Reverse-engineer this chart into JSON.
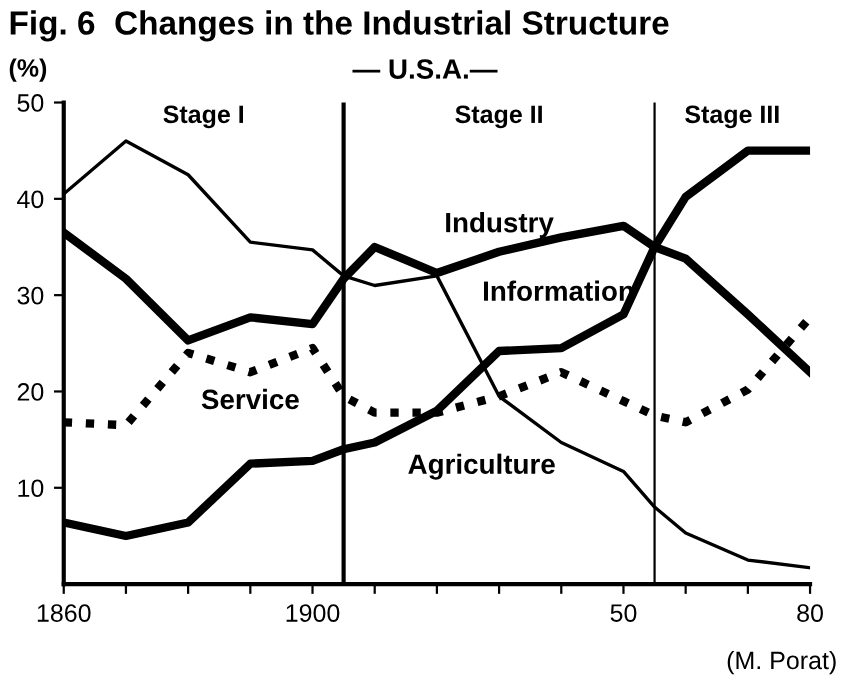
{
  "chart_data": {
    "type": "line",
    "title": "Fig. 6  Changes in the Industrial Structure",
    "subtitle": "— U.S.A.—",
    "ylabel": "(%)",
    "x": [
      1860,
      1870,
      1880,
      1890,
      1900,
      1905,
      1910,
      1920,
      1930,
      1940,
      1950,
      1955,
      1960,
      1970,
      1980
    ],
    "series": [
      {
        "name": "Agriculture",
        "color": "#000000",
        "line_style": "solid",
        "values": [
          40.5,
          46,
          42.5,
          35.5,
          34.7,
          32,
          31,
          32,
          19.5,
          14.7,
          11.7,
          8,
          5.3,
          2.5,
          1.7
        ]
      },
      {
        "name": "Industry",
        "color": "#000000",
        "line_style": "solid",
        "values": [
          36.5,
          31.7,
          25.3,
          27.7,
          27,
          31.7,
          35,
          32.3,
          34.5,
          36,
          37.2,
          35,
          33.8,
          28,
          22
        ]
      },
      {
        "name": "Service",
        "color": "#000000",
        "line_style": "dotted",
        "values": [
          16.8,
          16.5,
          24,
          22,
          24.5,
          19.5,
          17.8,
          17.8,
          19.5,
          22,
          19,
          17.5,
          16.8,
          20.2,
          27.7
        ]
      },
      {
        "name": "Information",
        "color": "#000000",
        "line_style": "solid",
        "values": [
          6.4,
          5,
          6.4,
          12.5,
          12.8,
          14,
          14.7,
          18,
          24.2,
          24.5,
          28,
          35,
          40.2,
          45,
          45
        ]
      }
    ],
    "xlim": [
      1860,
      1980
    ],
    "xticks": [
      1860,
      {
        "value": 1870,
        "label": null
      },
      {
        "value": 1880,
        "label": null
      },
      {
        "value": 1890,
        "label": null
      },
      1900,
      {
        "value": 1910,
        "label": null
      },
      {
        "value": 1920,
        "label": null
      },
      {
        "value": 1930,
        "label": null
      },
      {
        "value": 1940,
        "label": null
      },
      {
        "value": 1950,
        "label": "50"
      },
      {
        "value": 1960,
        "label": null
      },
      {
        "value": 1970,
        "label": null
      },
      {
        "value": 1980,
        "label": "80"
      }
    ],
    "ylim": [
      0,
      50
    ],
    "yticks": [
      10,
      20,
      30,
      40,
      50
    ],
    "ref_lines": [
      {
        "axis": "x",
        "value": 1905,
        "color": "#000000",
        "line_style": "solid"
      },
      {
        "axis": "x",
        "value": 1955,
        "color": "#000000",
        "line_style": "solid"
      }
    ],
    "annotations": [
      "Stage I",
      "Stage II",
      "Stage III",
      "(M. Porat)"
    ],
    "grid": false,
    "legend": false,
    "marker": "none"
  }
}
